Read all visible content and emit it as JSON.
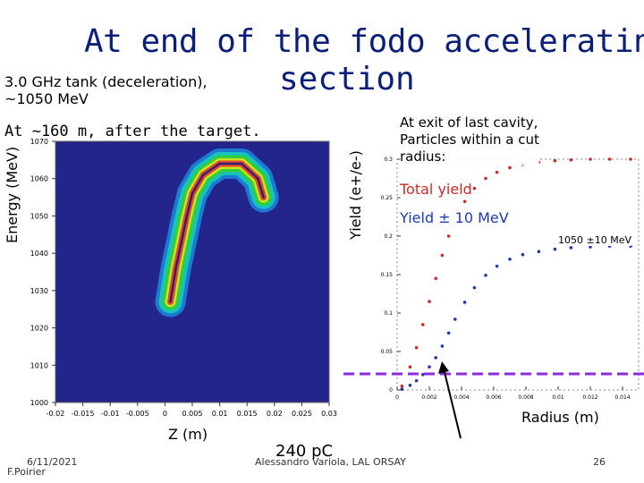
{
  "slide": {
    "title_line1": "At end of the fodo accelerating",
    "title_line2": "section",
    "subtitle_line1": "3.0 GHz tank (deceleration),",
    "subtitle_line2": "~1050 MeV",
    "position_note": "At ~160 m, after the target.",
    "exit_note_line1": "At exit of last cavity,",
    "exit_note_line2": "Particles within a cut",
    "exit_note_line3": "radius:",
    "legend_total": "Total yield",
    "legend_pm10": "Yield ± 10 MeV",
    "energy_label": "1050 ±10 MeV",
    "footer_date": "6/11/2021",
    "footer_author": "F.Poirier",
    "footer_pc": "240 pC",
    "footer_center": "Alessandro Variola, LAL ORSAY",
    "page_number": "26"
  },
  "colors": {
    "title": "#0b1f7a",
    "legend_total": "#cc2a2a",
    "legend_pm10": "#1f3bb3",
    "cut_line": "#8a2be2"
  },
  "chart_data": [
    {
      "type": "heatmap",
      "title": "",
      "xlabel": "Z (m)",
      "ylabel": "Energy (MeV)",
      "xlim": [
        -0.02,
        0.03
      ],
      "ylim": [
        1000,
        1070
      ],
      "x_ticks": [
        "-0.02",
        "-0.015",
        "-0.01",
        "-0.005",
        "0",
        "0.005",
        "0.01",
        "0.015",
        "0.02",
        "0.025",
        "0.03"
      ],
      "y_ticks": [
        "1070",
        "1060",
        "1050",
        "1040",
        "1030",
        "1020",
        "1010",
        "1000"
      ],
      "ridge": [
        {
          "z": 0.001,
          "e": 1027
        },
        {
          "z": 0.002,
          "e": 1036
        },
        {
          "z": 0.003,
          "e": 1043
        },
        {
          "z": 0.004,
          "e": 1050
        },
        {
          "z": 0.005,
          "e": 1056
        },
        {
          "z": 0.007,
          "e": 1061
        },
        {
          "z": 0.01,
          "e": 1064
        },
        {
          "z": 0.014,
          "e": 1064
        },
        {
          "z": 0.017,
          "e": 1060
        },
        {
          "z": 0.018,
          "e": 1055
        }
      ]
    },
    {
      "type": "scatter",
      "xlabel": "Radius (m)",
      "ylabel": "Yield (e+/e-)",
      "xlim": [
        0,
        0.015
      ],
      "ylim": [
        0,
        0.3
      ],
      "x_ticks": [
        "0",
        "0.002",
        "0.004",
        "0.006",
        "0.008",
        "0.01",
        "0.012",
        "0.014"
      ],
      "y_ticks": [
        "0",
        "0.05",
        "0.1",
        "0.15",
        "0.2",
        "0.25",
        "0.3"
      ],
      "cut_line_y": 0.05,
      "series": [
        {
          "name": "Total yield",
          "x": [
            0.0003,
            0.0008,
            0.0012,
            0.0016,
            0.002,
            0.0024,
            0.0028,
            0.0032,
            0.0036,
            0.0042,
            0.0048,
            0.0055,
            0.0062,
            0.007,
            0.0078,
            0.0088,
            0.0098,
            0.0108,
            0.012,
            0.0132,
            0.0145
          ],
          "y": [
            0.005,
            0.03,
            0.055,
            0.085,
            0.115,
            0.145,
            0.175,
            0.2,
            0.22,
            0.245,
            0.262,
            0.275,
            0.283,
            0.289,
            0.293,
            0.296,
            0.298,
            0.299,
            0.3,
            0.3,
            0.3
          ]
        },
        {
          "name": "Yield ± 10 MeV",
          "x": [
            0.0003,
            0.0008,
            0.0012,
            0.0016,
            0.002,
            0.0024,
            0.0028,
            0.0032,
            0.0036,
            0.0042,
            0.0048,
            0.0055,
            0.0062,
            0.007,
            0.0078,
            0.0088,
            0.0098,
            0.0108,
            0.012,
            0.0132,
            0.0145
          ],
          "y": [
            0.001,
            0.006,
            0.012,
            0.02,
            0.03,
            0.042,
            0.057,
            0.074,
            0.092,
            0.114,
            0.133,
            0.149,
            0.161,
            0.17,
            0.176,
            0.18,
            0.183,
            0.185,
            0.186,
            0.187,
            0.187
          ]
        }
      ]
    }
  ]
}
